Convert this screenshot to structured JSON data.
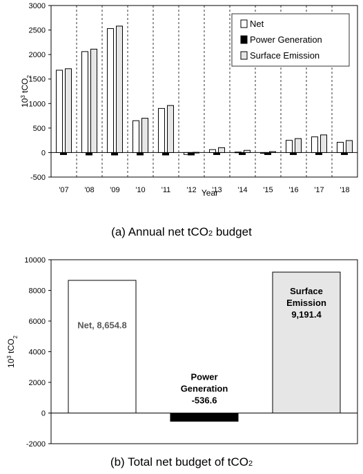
{
  "chart_data": [
    {
      "type": "bar",
      "caption_prefix": "(a) Annual net tCO",
      "caption_sub": "2",
      "caption_suffix": " budget",
      "xlabel": "Year",
      "ylabel_base": "10",
      "ylabel_sup": "3",
      "ylabel_unit": " tCO",
      "ylabel_sub": "2",
      "ylim": [
        -500,
        3000
      ],
      "yticks": [
        -500,
        0,
        500,
        1000,
        1500,
        2000,
        2500,
        3000
      ],
      "categories": [
        "'07",
        "'08",
        "'09",
        "'10",
        "'11",
        "'12",
        "'13",
        "'14",
        "'15",
        "'16",
        "'17",
        "'18"
      ],
      "series": [
        {
          "name": "Net",
          "color": "#ffffff",
          "values": [
            1680,
            2060,
            2530,
            650,
            900,
            -40,
            60,
            10,
            -15,
            250,
            320,
            210
          ]
        },
        {
          "name": "Power Generation",
          "color": "#000000",
          "values": [
            -30,
            -50,
            -50,
            -50,
            -50,
            -50,
            -40,
            -35,
            -40,
            -30,
            -40,
            -35
          ]
        },
        {
          "name": "Surface Emission",
          "color": "#e6e6e6",
          "values": [
            1710,
            2110,
            2580,
            700,
            960,
            5,
            100,
            45,
            20,
            285,
            360,
            245
          ]
        }
      ],
      "grid": "vertical dashed",
      "legend_position": "top-right"
    },
    {
      "type": "bar",
      "caption_prefix": "(b) Total net budget of tCO",
      "caption_sub": "2",
      "caption_suffix": "",
      "ylabel_base": "10",
      "ylabel_sup": "3",
      "ylabel_unit": " tCO",
      "ylabel_sub": "2",
      "ylim": [
        -2000,
        10000
      ],
      "yticks": [
        -2000,
        0,
        2000,
        4000,
        6000,
        8000,
        10000
      ],
      "categories": [
        "Net",
        "Power Generation",
        "Surface Emission"
      ],
      "values": [
        8654.8,
        -536.6,
        9191.4
      ],
      "colors": [
        "#ffffff",
        "#000000",
        "#e6e6e6"
      ],
      "data_labels": [
        [
          "Net, 8,654.8"
        ],
        [
          "Power",
          "Generation",
          "-536.6"
        ],
        [
          "Surface",
          "Emission",
          "9,191.4"
        ]
      ],
      "label_colors": [
        "#595959",
        "#000000",
        "#000000"
      ]
    }
  ]
}
